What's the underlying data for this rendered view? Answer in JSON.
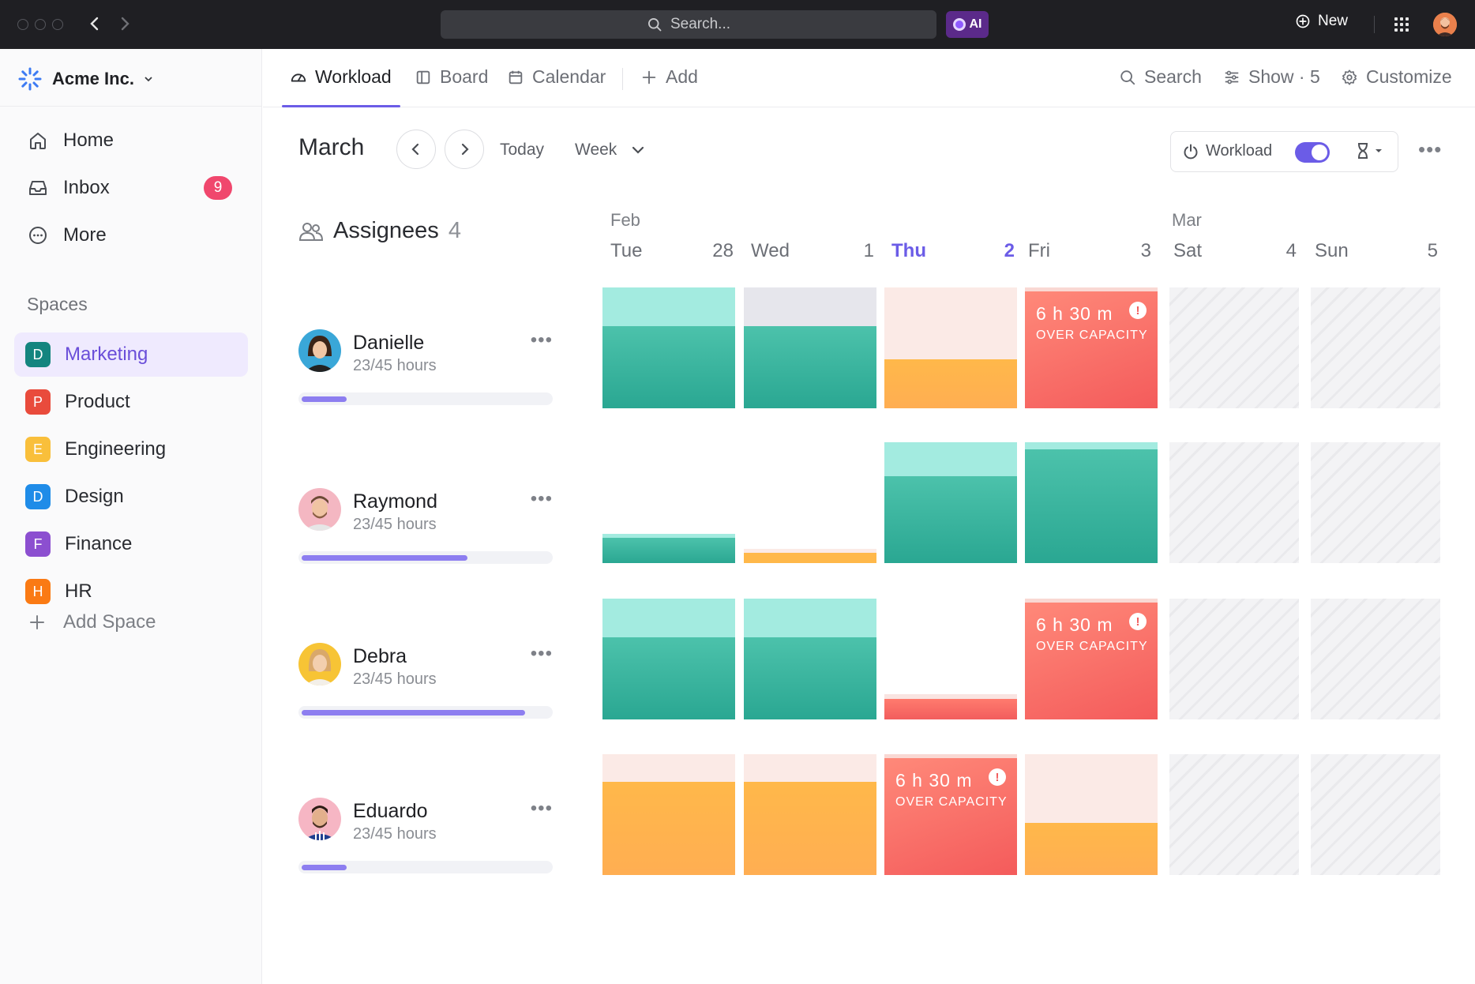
{
  "topbar": {
    "search_placeholder": "Search...",
    "ai_label": "AI",
    "new_label": "New"
  },
  "sidebar": {
    "workspace": "Acme Inc.",
    "nav": [
      {
        "label": "Home",
        "icon": "home-icon"
      },
      {
        "label": "Inbox",
        "icon": "inbox-icon",
        "badge": "9"
      },
      {
        "label": "More",
        "icon": "more-icon"
      }
    ],
    "spaces_title": "Spaces",
    "spaces": [
      {
        "letter": "D",
        "label": "Marketing",
        "color": "#14857f",
        "active": true
      },
      {
        "letter": "P",
        "label": "Product",
        "color": "#e94b3c"
      },
      {
        "letter": "E",
        "label": "Engineering",
        "color": "#f9bf3b"
      },
      {
        "letter": "D",
        "label": "Design",
        "color": "#1f8ce8"
      },
      {
        "letter": "F",
        "label": "Finance",
        "color": "#8c4fd0"
      },
      {
        "letter": "H",
        "label": "HR",
        "color": "#fa7a14"
      }
    ],
    "add_space": "Add Space"
  },
  "tabs": {
    "workload": "Workload",
    "board": "Board",
    "calendar": "Calendar",
    "add": "Add",
    "search": "Search",
    "show": "Show · 5",
    "customize": "Customize"
  },
  "toolbar": {
    "month": "March",
    "today": "Today",
    "week": "Week",
    "workload_toggle": "Workload",
    "accent": "#6b5ce7"
  },
  "grid": {
    "assignees_label": "Assignees",
    "assignees_count": "4",
    "month_feb": "Feb",
    "month_mar": "Mar",
    "days": [
      {
        "name": "Tue",
        "num": "28"
      },
      {
        "name": "Wed",
        "num": "1"
      },
      {
        "name": "Thu",
        "num": "2",
        "today": true
      },
      {
        "name": "Fri",
        "num": "3"
      },
      {
        "name": "Sat",
        "num": "4"
      },
      {
        "name": "Sun",
        "num": "5"
      }
    ],
    "over_hours": "6 h 30 m",
    "over_label": "OVER CAPACITY"
  },
  "people": [
    {
      "name": "Danielle",
      "hours": "23/45 hours",
      "progress": 0.18
    },
    {
      "name": "Raymond",
      "hours": "23/45 hours",
      "progress": 0.67
    },
    {
      "name": "Debra",
      "hours": "23/45 hours",
      "progress": 0.9
    },
    {
      "name": "Eduardo",
      "hours": "23/45 hours",
      "progress": 0.18
    }
  ]
}
